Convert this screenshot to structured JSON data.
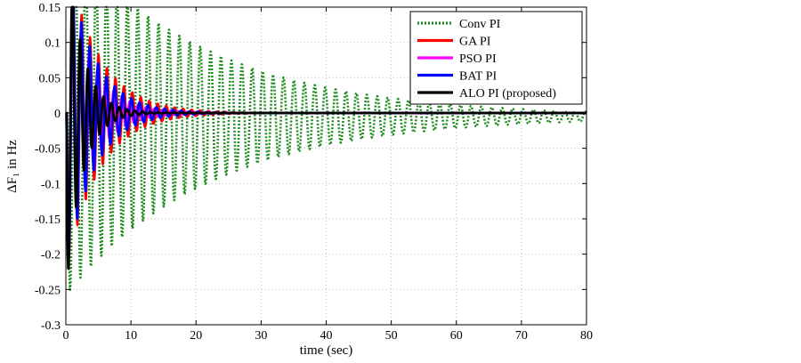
{
  "chart_data": {
    "type": "line",
    "title": "",
    "xlabel": "time (sec)",
    "ylabel": "ΔF₁ in Hz",
    "xlim": [
      0,
      80
    ],
    "ylim": [
      -0.3,
      0.15
    ],
    "xticks": [
      0,
      10,
      20,
      30,
      40,
      50,
      60,
      70,
      80
    ],
    "xtick_labels": [
      "0",
      "10",
      "20",
      "30",
      "40",
      "50",
      "60",
      "70",
      "80"
    ],
    "yticks": [
      0.15,
      0.1,
      0.05,
      0,
      -0.05,
      -0.1,
      -0.15,
      -0.2,
      -0.25,
      -0.3
    ],
    "ytick_labels": [
      "0.15",
      "0.1",
      "0.05",
      "0",
      "-0.05",
      "-0.1",
      "-0.15",
      "-0.2",
      "-0.25",
      "-0.3"
    ],
    "grid": true,
    "legend_position": "top-right",
    "series": [
      {
        "name": "Conv PI",
        "color": "#1e8c1e",
        "style": "dotted",
        "model": {
          "A": 0.25,
          "tau": 22,
          "period": 1.6,
          "offset": -0.005,
          "phase": 0,
          "t0": 0.25
        }
      },
      {
        "name": "GA PI",
        "color": "#ff0000",
        "style": "solid",
        "model": {
          "A": 0.22,
          "tau": 5.0,
          "period": 1.3,
          "offset": 0,
          "phase": 0,
          "t0": 0.15
        }
      },
      {
        "name": "PSO PI",
        "color": "#ff00ff",
        "style": "solid",
        "model": {
          "A": 0.21,
          "tau": 3.8,
          "period": 1.25,
          "offset": 0,
          "phase": 0,
          "t0": 0.15
        }
      },
      {
        "name": "BAT PI",
        "color": "#0000ff",
        "style": "solid",
        "model": {
          "A": 0.22,
          "tau": 4.2,
          "period": 1.28,
          "offset": 0,
          "phase": 0,
          "t0": 0.15
        }
      },
      {
        "name": "ALO PI (proposed)",
        "color": "#000000",
        "style": "solid",
        "model": {
          "A": 0.25,
          "tau": 2.4,
          "period": 1.2,
          "offset": 0,
          "phase": 0,
          "t0": 0.1
        }
      }
    ]
  },
  "legend": {
    "items": [
      {
        "label": "Conv PI",
        "color": "#1e8c1e",
        "style": "dotted"
      },
      {
        "label": "GA PI",
        "color": "#ff0000",
        "style": "solid"
      },
      {
        "label": "PSO PI",
        "color": "#ff00ff",
        "style": "solid"
      },
      {
        "label": "BAT PI",
        "color": "#0000ff",
        "style": "solid"
      },
      {
        "label": "ALO PI (proposed)",
        "color": "#000000",
        "style": "solid"
      }
    ]
  }
}
